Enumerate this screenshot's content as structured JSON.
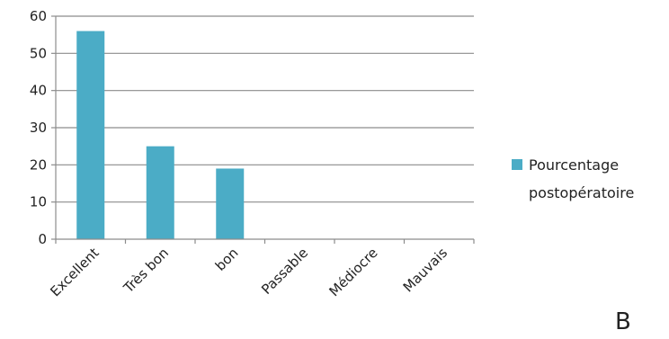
{
  "chart_data": {
    "type": "bar",
    "categories": [
      "Excellent",
      "Très bon",
      "bon",
      "Passable",
      "Médiocre",
      "Mauvais"
    ],
    "series": [
      {
        "name": "Pourcentage postopératoire",
        "legend_lines": [
          "Pourcentage",
          "postopératoire"
        ],
        "values": [
          56,
          25,
          19,
          0,
          0,
          0
        ],
        "color": "#4bacc6"
      }
    ],
    "ylim": [
      0,
      60
    ],
    "yticks": [
      0,
      10,
      20,
      30,
      40,
      50,
      60
    ],
    "grid": true,
    "legend": "right",
    "panel_label": "B"
  }
}
